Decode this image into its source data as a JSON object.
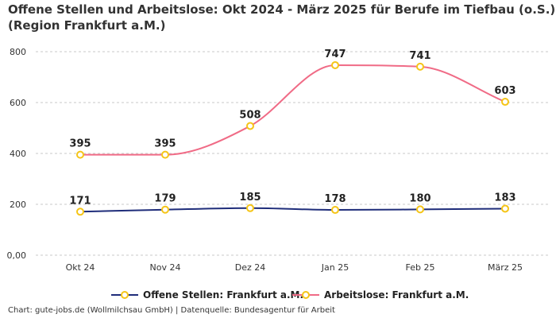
{
  "chart_data": {
    "type": "line",
    "title": "Offene Stellen und Arbeitslose: Okt 2024 - März 2025 für Berufe im Tiefbau (o.S.) (Region Frankfurt a.M.)",
    "categories": [
      "Okt 24",
      "Nov 24",
      "Dez 24",
      "Jan 25",
      "Feb 25",
      "März 25"
    ],
    "ylim": [
      0,
      800
    ],
    "yticks": [
      "0,00",
      "200",
      "400",
      "600",
      "800"
    ],
    "ytick_values": [
      0,
      200,
      400,
      600,
      800
    ],
    "grid": true,
    "legend_position": "bottom",
    "series": [
      {
        "name": "Offene Stellen: Frankfurt a.M.",
        "values": [
          171,
          179,
          185,
          178,
          180,
          183
        ],
        "color": "#1f2d7a"
      },
      {
        "name": "Arbeitslose: Frankfurt a.M.",
        "values": [
          395,
          395,
          508,
          747,
          741,
          603
        ],
        "color": "#f06b86"
      }
    ],
    "marker_color": "#f5c518"
  },
  "credit": "Chart: gute-jobs.de (Wollmilchsau GmbH) | Datenquelle: Bundesagentur für Arbeit"
}
